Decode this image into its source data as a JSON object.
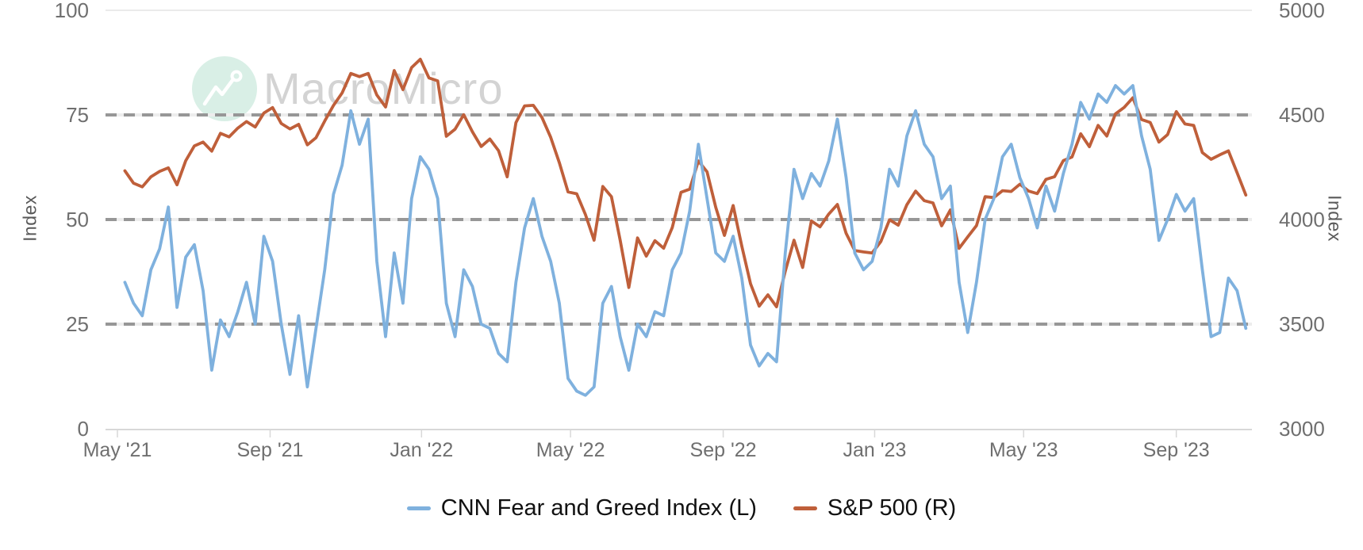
{
  "watermark": {
    "text": "MacroMicro",
    "circle_color": "#d9efe6",
    "text_color": "#d3d3d3"
  },
  "axes": {
    "left": {
      "title": "Index",
      "ticks": [
        {
          "value": 100,
          "label": "100"
        },
        {
          "value": 75,
          "label": "75"
        },
        {
          "value": 50,
          "label": "50"
        },
        {
          "value": 25,
          "label": "25"
        },
        {
          "value": 0,
          "label": "0"
        }
      ]
    },
    "right": {
      "title": "Index",
      "ticks": [
        {
          "value": 5000,
          "label": "5000"
        },
        {
          "value": 4500,
          "label": "4500"
        },
        {
          "value": 4000,
          "label": "4000"
        },
        {
          "value": 3500,
          "label": "3500"
        },
        {
          "value": 3000,
          "label": "3000"
        }
      ]
    },
    "x": {
      "ticks": [
        {
          "date": "2021-05-01",
          "label": "May '21"
        },
        {
          "date": "2021-09-01",
          "label": "Sep '21"
        },
        {
          "date": "2022-01-01",
          "label": "Jan '22"
        },
        {
          "date": "2022-05-01",
          "label": "May '22"
        },
        {
          "date": "2022-09-01",
          "label": "Sep '22"
        },
        {
          "date": "2023-01-01",
          "label": "Jan '23"
        },
        {
          "date": "2023-05-01",
          "label": "May '23"
        },
        {
          "date": "2023-09-01",
          "label": "Sep '23"
        }
      ]
    }
  },
  "legend": {
    "items": [
      {
        "label": "CNN Fear and Greed Index (L)",
        "color": "#7fb1de"
      },
      {
        "label": "S&P 500 (R)",
        "color": "#bf5f3a"
      }
    ]
  },
  "chart_data": {
    "type": "line",
    "x_type": "time",
    "title": "",
    "legend_position": "bottom",
    "background": "#ffffff",
    "left_axis": {
      "label": "Index",
      "range": [
        0,
        100
      ],
      "gridlines_dashed": [
        75,
        50,
        25
      ]
    },
    "right_axis": {
      "label": "Index",
      "range": [
        3000,
        5000
      ]
    },
    "dates": [
      "2021-05-07",
      "2021-05-14",
      "2021-05-21",
      "2021-05-28",
      "2021-06-04",
      "2021-06-11",
      "2021-06-18",
      "2021-06-25",
      "2021-07-02",
      "2021-07-09",
      "2021-07-16",
      "2021-07-23",
      "2021-07-30",
      "2021-08-06",
      "2021-08-13",
      "2021-08-20",
      "2021-08-27",
      "2021-09-03",
      "2021-09-10",
      "2021-09-17",
      "2021-09-24",
      "2021-10-01",
      "2021-10-08",
      "2021-10-15",
      "2021-10-22",
      "2021-10-29",
      "2021-11-05",
      "2021-11-12",
      "2021-11-19",
      "2021-11-26",
      "2021-12-03",
      "2021-12-10",
      "2021-12-17",
      "2021-12-24",
      "2021-12-31",
      "2022-01-07",
      "2022-01-14",
      "2022-01-21",
      "2022-01-28",
      "2022-02-04",
      "2022-02-11",
      "2022-02-18",
      "2022-02-25",
      "2022-03-04",
      "2022-03-11",
      "2022-03-18",
      "2022-03-25",
      "2022-04-01",
      "2022-04-08",
      "2022-04-15",
      "2022-04-22",
      "2022-04-29",
      "2022-05-06",
      "2022-05-13",
      "2022-05-20",
      "2022-05-27",
      "2022-06-03",
      "2022-06-10",
      "2022-06-17",
      "2022-06-24",
      "2022-07-01",
      "2022-07-08",
      "2022-07-15",
      "2022-07-22",
      "2022-07-29",
      "2022-08-05",
      "2022-08-12",
      "2022-08-19",
      "2022-08-26",
      "2022-09-02",
      "2022-09-09",
      "2022-09-16",
      "2022-09-23",
      "2022-09-30",
      "2022-10-07",
      "2022-10-14",
      "2022-10-21",
      "2022-10-28",
      "2022-11-04",
      "2022-11-11",
      "2022-11-18",
      "2022-11-25",
      "2022-12-02",
      "2022-12-09",
      "2022-12-16",
      "2022-12-23",
      "2022-12-30",
      "2023-01-06",
      "2023-01-13",
      "2023-01-20",
      "2023-01-27",
      "2023-02-03",
      "2023-02-10",
      "2023-02-17",
      "2023-02-24",
      "2023-03-03",
      "2023-03-10",
      "2023-03-17",
      "2023-03-24",
      "2023-03-31",
      "2023-04-07",
      "2023-04-14",
      "2023-04-21",
      "2023-04-28",
      "2023-05-05",
      "2023-05-12",
      "2023-05-19",
      "2023-05-26",
      "2023-06-02",
      "2023-06-09",
      "2023-06-16",
      "2023-06-23",
      "2023-06-30",
      "2023-07-07",
      "2023-07-14",
      "2023-07-21",
      "2023-07-28",
      "2023-08-04",
      "2023-08-11",
      "2023-08-18",
      "2023-08-25",
      "2023-09-01",
      "2023-09-08",
      "2023-09-15",
      "2023-09-22",
      "2023-09-29",
      "2023-10-06",
      "2023-10-13",
      "2023-10-20",
      "2023-10-27"
    ],
    "series": [
      {
        "name": "CNN Fear and Greed Index (L)",
        "axis": "left",
        "color": "#7fb1de",
        "values": [
          35,
          30,
          27,
          38,
          43,
          53,
          29,
          41,
          44,
          33,
          14,
          26,
          22,
          28,
          35,
          25,
          46,
          40,
          25,
          13,
          27,
          10,
          24,
          38,
          56,
          63,
          76,
          68,
          74,
          40,
          22,
          42,
          30,
          55,
          65,
          62,
          55,
          30,
          22,
          38,
          34,
          25,
          24,
          18,
          16,
          35,
          48,
          55,
          46,
          40,
          30,
          12,
          9,
          8,
          10,
          30,
          34,
          22,
          14,
          25,
          22,
          28,
          27,
          38,
          42,
          52,
          68,
          55,
          42,
          40,
          46,
          36,
          20,
          15,
          18,
          16,
          42,
          62,
          55,
          61,
          58,
          64,
          74,
          60,
          42,
          38,
          40,
          48,
          62,
          58,
          70,
          76,
          68,
          65,
          55,
          58,
          35,
          23,
          35,
          50,
          55,
          65,
          68,
          60,
          55,
          48,
          58,
          52,
          61,
          68,
          78,
          74,
          80,
          78,
          82,
          80,
          82,
          70,
          62,
          45,
          50,
          56,
          52,
          55,
          38,
          22,
          23,
          36,
          33,
          24
        ]
      },
      {
        "name": "S&P 500 (R)",
        "axis": "right",
        "color": "#bf5f3a",
        "values": [
          4233,
          4174,
          4156,
          4204,
          4230,
          4247,
          4166,
          4281,
          4352,
          4370,
          4327,
          4412,
          4395,
          4437,
          4468,
          4442,
          4509,
          4535,
          4459,
          4433,
          4455,
          4357,
          4391,
          4471,
          4545,
          4605,
          4698,
          4683,
          4698,
          4595,
          4538,
          4712,
          4621,
          4726,
          4766,
          4677,
          4663,
          4398,
          4432,
          4501,
          4419,
          4349,
          4385,
          4329,
          4204,
          4463,
          4543,
          4546,
          4488,
          4393,
          4272,
          4132,
          4123,
          4024,
          3901,
          4158,
          4109,
          3901,
          3675,
          3912,
          3825,
          3899,
          3863,
          3962,
          4130,
          4145,
          4280,
          4228,
          4058,
          3924,
          4067,
          3873,
          3693,
          3586,
          3640,
          3583,
          3753,
          3901,
          3771,
          3993,
          3965,
          4026,
          4072,
          3934,
          3852,
          3845,
          3840,
          3895,
          3999,
          3973,
          4071,
          4136,
          4090,
          4079,
          3970,
          4046,
          3862,
          3917,
          3971,
          4109,
          4105,
          4138,
          4134,
          4169,
          4136,
          4124,
          4192,
          4205,
          4282,
          4299,
          4410,
          4348,
          4450,
          4399,
          4505,
          4536,
          4582,
          4478,
          4464,
          4370,
          4406,
          4516,
          4457,
          4450,
          4320,
          4288,
          4309,
          4328,
          4224,
          4117
        ]
      }
    ]
  }
}
